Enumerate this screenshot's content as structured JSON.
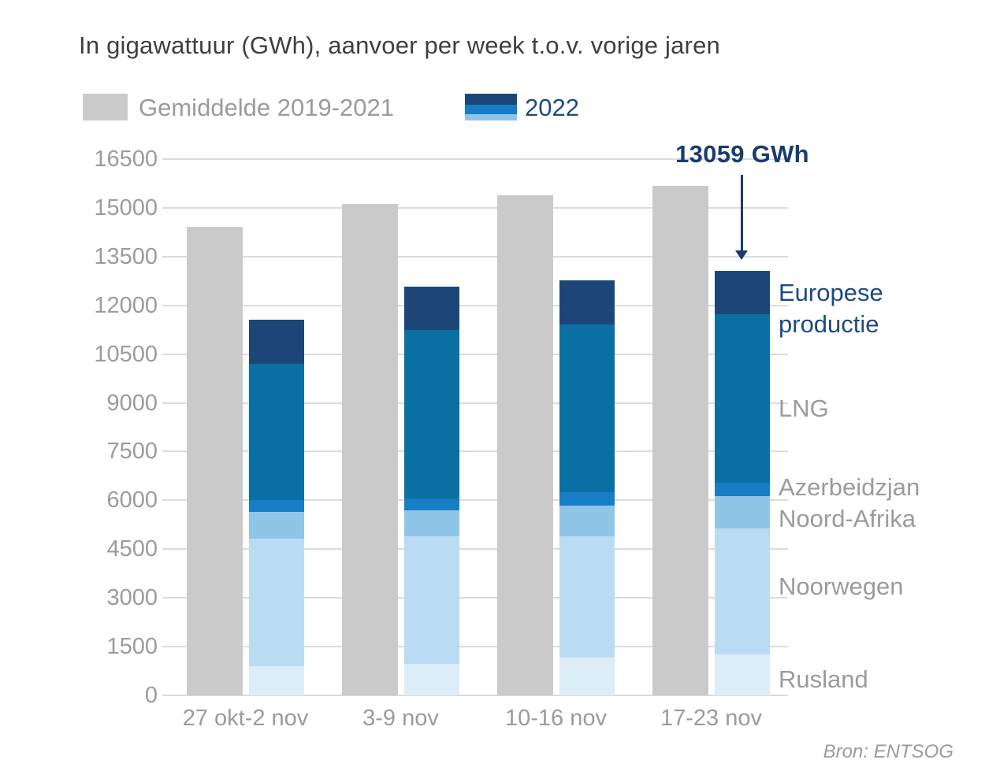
{
  "title": "In gigawattuur (GWh), aanvoer per week t.o.v. vorige jaren",
  "legend": {
    "avg_label": "Gemiddelde 2019-2021",
    "year_label": "2022"
  },
  "annotation": {
    "text": "13059 GWh"
  },
  "source": "Bron: ENTSOG",
  "colors": {
    "background": "#ffffff",
    "average_bar": "#cacaca",
    "europese_productie": "#1d4678",
    "lng": "#0a6fa3",
    "azerbeidzjan": "#177dc4",
    "noord_afrika": "#8fc6e8",
    "noorwegen": "#badcf2",
    "rusland": "#dcedf8",
    "title_text": "#3f3f3f",
    "gray_text": "#9b9b9b",
    "navy_text": "#1d4a80",
    "annotation_text": "#1a3c6d",
    "gridline": "#dbdbdb"
  },
  "chart_data": {
    "type": "bar",
    "title": "In gigawattuur (GWh), aanvoer per week t.o.v. vorige jaren",
    "unit": "GWh",
    "categories": [
      "27 okt-2 nov",
      "3-9 nov",
      "10-16 nov",
      "17-23 nov"
    ],
    "ylim": [
      0,
      16500
    ],
    "y_ticks": [
      0,
      1500,
      3000,
      4500,
      6000,
      7500,
      9000,
      10500,
      12000,
      13500,
      15000,
      16500
    ],
    "grid": true,
    "legend_position": "top",
    "avg_series": {
      "name": "Gemiddelde 2019-2021",
      "color": "#cacaca",
      "values": [
        14420,
        15120,
        15390,
        15680
      ]
    },
    "stack_series": [
      {
        "name": "Rusland",
        "color": "#dcedf8",
        "values": [
          900,
          970,
          1160,
          1260
        ]
      },
      {
        "name": "Noorwegen",
        "color": "#badcf2",
        "values": [
          3920,
          3920,
          3730,
          3880
        ]
      },
      {
        "name": "Noord-Afrika",
        "color": "#8fc6e8",
        "values": [
          830,
          800,
          950,
          990
        ]
      },
      {
        "name": "Azerbeidzjan",
        "color": "#177dc4",
        "values": [
          360,
          370,
          410,
          410
        ]
      },
      {
        "name": "LNG",
        "color": "#0a6fa3",
        "values": [
          4190,
          5180,
          5160,
          5190
        ]
      },
      {
        "name": "Europese productie",
        "color": "#1d4678",
        "values": [
          1350,
          1330,
          1360,
          1329
        ]
      }
    ],
    "stack_totals": [
      11550,
      12570,
      12770,
      13059
    ],
    "right_labels": [
      {
        "text": "Europese productie",
        "lines": [
          "Europese",
          "productie"
        ],
        "value": 11900,
        "emphasis": true
      },
      {
        "text": "LNG",
        "value": 8820,
        "emphasis": false
      },
      {
        "text": "Azerbeidzjan",
        "value": 6400,
        "emphasis": false
      },
      {
        "text": "Noord-Afrika",
        "value": 5430,
        "emphasis": false
      },
      {
        "text": "Noorwegen",
        "value": 3340,
        "emphasis": false
      },
      {
        "text": "Rusland",
        "value": 480,
        "emphasis": false
      }
    ],
    "annotation": {
      "text": "13059 GWh",
      "bar_index": 3,
      "value": 13059
    }
  }
}
